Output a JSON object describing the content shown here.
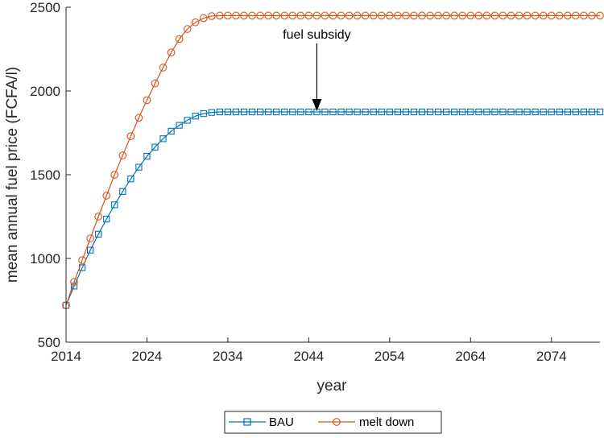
{
  "chart_data": {
    "type": "line",
    "xlabel": "year",
    "ylabel": "mean annual fuel price (FCFA/l)",
    "xlim": [
      2014,
      2080
    ],
    "ylim": [
      500,
      2500
    ],
    "xticks": [
      2014,
      2024,
      2034,
      2044,
      2054,
      2064,
      2074
    ],
    "yticks": [
      500,
      1000,
      1500,
      2000,
      2500
    ],
    "grid": false,
    "legend_position": "bottom-outside",
    "annotation": {
      "text": "fuel subsidy",
      "x": 2045,
      "y": 1875
    },
    "series": [
      {
        "name": "BAU",
        "color": "#0072BD",
        "marker": "square",
        "start": 720,
        "end": 1875,
        "ramp_years": 19,
        "x": [
          2014,
          2015,
          2016,
          2017,
          2018,
          2019,
          2020,
          2021,
          2022,
          2023,
          2024,
          2025,
          2026,
          2027,
          2028,
          2029,
          2030,
          2031,
          2032,
          2033,
          2034,
          2035,
          2036,
          2037,
          2038,
          2039,
          2040,
          2041,
          2042,
          2043,
          2044,
          2045,
          2046,
          2047,
          2048,
          2049,
          2050,
          2051,
          2052,
          2053,
          2054,
          2055,
          2056,
          2057,
          2058,
          2059,
          2060,
          2061,
          2062,
          2063,
          2064,
          2065,
          2066,
          2067,
          2068,
          2069,
          2070,
          2071,
          2072,
          2073,
          2074,
          2075,
          2076,
          2077,
          2078,
          2079,
          2080
        ],
        "values": [
          720,
          835,
          945,
          1050,
          1145,
          1235,
          1320,
          1400,
          1475,
          1545,
          1610,
          1665,
          1715,
          1760,
          1795,
          1825,
          1850,
          1865,
          1872,
          1875,
          1875,
          1875,
          1875,
          1875,
          1875,
          1875,
          1875,
          1875,
          1875,
          1875,
          1875,
          1875,
          1875,
          1875,
          1875,
          1875,
          1875,
          1875,
          1875,
          1875,
          1875,
          1875,
          1875,
          1875,
          1875,
          1875,
          1875,
          1875,
          1875,
          1875,
          1875,
          1875,
          1875,
          1875,
          1875,
          1875,
          1875,
          1875,
          1875,
          1875,
          1875,
          1875,
          1875,
          1875,
          1875,
          1875,
          1875
        ]
      },
      {
        "name": "melt down",
        "color": "#D95319",
        "marker": "circle",
        "start": 720,
        "end": 2450,
        "ramp_years": 19,
        "x": [
          2014,
          2015,
          2016,
          2017,
          2018,
          2019,
          2020,
          2021,
          2022,
          2023,
          2024,
          2025,
          2026,
          2027,
          2028,
          2029,
          2030,
          2031,
          2032,
          2033,
          2034,
          2035,
          2036,
          2037,
          2038,
          2039,
          2040,
          2041,
          2042,
          2043,
          2044,
          2045,
          2046,
          2047,
          2048,
          2049,
          2050,
          2051,
          2052,
          2053,
          2054,
          2055,
          2056,
          2057,
          2058,
          2059,
          2060,
          2061,
          2062,
          2063,
          2064,
          2065,
          2066,
          2067,
          2068,
          2069,
          2070,
          2071,
          2072,
          2073,
          2074,
          2075,
          2076,
          2077,
          2078,
          2079,
          2080
        ],
        "values": [
          720,
          860,
          990,
          1120,
          1250,
          1375,
          1500,
          1615,
          1730,
          1840,
          1945,
          2045,
          2140,
          2230,
          2310,
          2370,
          2410,
          2435,
          2447,
          2450,
          2450,
          2450,
          2450,
          2450,
          2450,
          2450,
          2450,
          2450,
          2450,
          2450,
          2450,
          2450,
          2450,
          2450,
          2450,
          2450,
          2450,
          2450,
          2450,
          2450,
          2450,
          2450,
          2450,
          2450,
          2450,
          2450,
          2450,
          2450,
          2450,
          2450,
          2450,
          2450,
          2450,
          2450,
          2450,
          2450,
          2450,
          2450,
          2450,
          2450,
          2450,
          2450,
          2450,
          2450,
          2450,
          2450,
          2450
        ]
      }
    ]
  }
}
